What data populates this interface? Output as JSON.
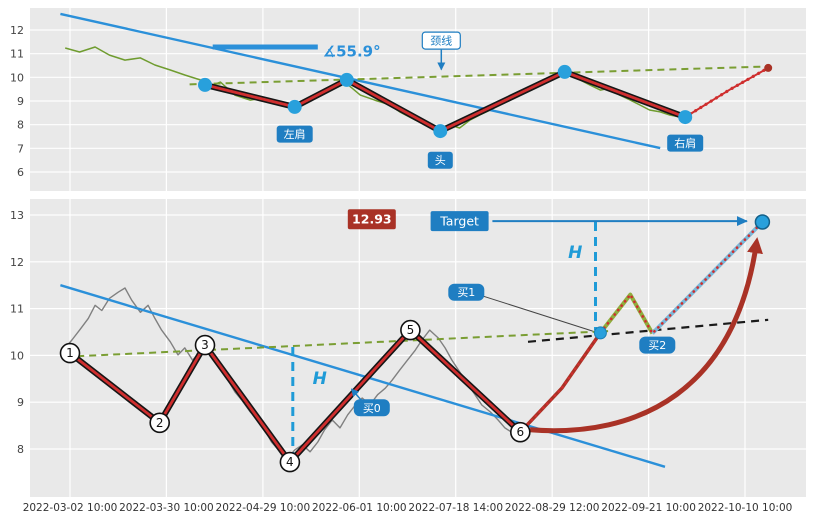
{
  "colors": {
    "panel_bg": "#e9e9e9",
    "grid": "#ffffff",
    "blue": "#2b90d9",
    "label_blue": "#1f7ec2",
    "measure_blue": "#1f9bd7",
    "price_green": "#6f9c2f",
    "green_dashed": "#7a9e33",
    "pattern_red": "#cf2e2e",
    "pattern_outline": "#161616",
    "maroon": "#a93226",
    "price_gray": "#808080",
    "dot_blue": "#28a0dc",
    "leg_green": "#8fae3e",
    "leg_blue": "#7bb8d9",
    "axis_text": "#444444"
  },
  "x_axis": {
    "x_scale": "index of x_axis.labels",
    "labels": [
      "2022-03-02 10:00",
      "2022-03-30 10:00",
      "2022-04-29 10:00",
      "2022-06-01 10:00",
      "2022-07-18 14:00",
      "2022-08-29 12:00",
      "2022-09-21 10:00",
      "2022-10-10 10:00"
    ]
  },
  "chart_data": [
    {
      "type": "line",
      "panel": "top",
      "title": "",
      "ylim": [
        5.2,
        12.9
      ],
      "y_ticks": [
        12,
        11,
        10,
        9,
        8,
        7,
        6
      ],
      "series": [
        {
          "name": "price",
          "points": [
            [
              -0.05,
              11.24
            ],
            [
              0.1,
              11.07
            ],
            [
              0.26,
              11.28
            ],
            [
              0.41,
              10.94
            ],
            [
              0.57,
              10.73
            ],
            [
              0.73,
              10.82
            ],
            [
              0.88,
              10.52
            ],
            [
              1.04,
              10.31
            ],
            [
              1.19,
              10.1
            ],
            [
              1.35,
              9.89
            ],
            [
              1.45,
              9.63
            ],
            [
              1.56,
              9.8
            ],
            [
              1.71,
              9.25
            ],
            [
              1.87,
              9.04
            ],
            [
              2.02,
              9.13
            ],
            [
              2.18,
              8.83
            ],
            [
              2.33,
              8.7
            ],
            [
              2.44,
              9.04
            ],
            [
              2.54,
              9.25
            ],
            [
              2.7,
              9.55
            ],
            [
              2.85,
              9.8
            ],
            [
              3.01,
              9.25
            ],
            [
              3.16,
              9.04
            ],
            [
              3.32,
              8.83
            ],
            [
              3.42,
              8.54
            ],
            [
              3.58,
              8.2
            ],
            [
              3.73,
              7.94
            ],
            [
              3.84,
              7.73
            ],
            [
              3.94,
              7.99
            ],
            [
              4.04,
              7.86
            ],
            [
              4.15,
              8.2
            ],
            [
              4.25,
              8.41
            ],
            [
              4.36,
              8.62
            ],
            [
              4.46,
              8.83
            ],
            [
              4.56,
              9.04
            ],
            [
              4.67,
              9.25
            ],
            [
              4.77,
              9.46
            ],
            [
              4.87,
              9.68
            ],
            [
              4.98,
              9.97
            ],
            [
              5.08,
              10.18
            ],
            [
              5.19,
              10.1
            ],
            [
              5.29,
              9.89
            ],
            [
              5.39,
              9.68
            ],
            [
              5.5,
              9.46
            ],
            [
              5.6,
              9.55
            ],
            [
              5.7,
              9.25
            ],
            [
              5.81,
              9.04
            ],
            [
              5.91,
              8.83
            ],
            [
              6.01,
              8.62
            ],
            [
              6.12,
              8.54
            ],
            [
              6.22,
              8.41
            ],
            [
              6.38,
              8.28
            ],
            [
              6.45,
              8.49
            ],
            [
              6.53,
              8.7
            ]
          ]
        },
        {
          "name": "trendline",
          "points": [
            [
              -0.1,
              12.68
            ],
            [
              6.12,
              7.01
            ]
          ]
        },
        {
          "name": "neckline",
          "points": [
            [
              1.24,
              9.7
            ],
            [
              7.26,
              10.46
            ]
          ]
        },
        {
          "name": "pattern",
          "points": [
            [
              1.4,
              9.68
            ],
            [
              2.33,
              8.75
            ],
            [
              2.87,
              9.89
            ],
            [
              3.84,
              7.73
            ],
            [
              5.13,
              10.23
            ],
            [
              6.38,
              8.32
            ]
          ]
        },
        {
          "name": "forecast_tail",
          "points": [
            [
              6.38,
              8.32
            ],
            [
              6.85,
              9.5
            ],
            [
              7.24,
              10.4
            ]
          ]
        }
      ],
      "annotations": {
        "angle": {
          "text": "∡55.9°",
          "bar": [
            [
              1.48,
              11.28
            ],
            [
              2.57,
              11.28
            ]
          ],
          "text_pos": [
            2.62,
            11.1
          ]
        },
        "neckline_label": {
          "text": "颈线",
          "pos": [
            3.85,
            11.55
          ],
          "arrow_to": [
            3.85,
            10.33
          ]
        },
        "markers": [
          {
            "text": "左肩",
            "pos": [
              2.33,
              7.6
            ]
          },
          {
            "text": "头",
            "pos": [
              3.84,
              6.5
            ]
          },
          {
            "text": "右肩",
            "pos": [
              6.38,
              7.22
            ]
          }
        ]
      }
    },
    {
      "type": "line",
      "panel": "bottom",
      "title": "",
      "ylim": [
        7.0,
        13.3
      ],
      "y_ticks": [
        13,
        12,
        11,
        10,
        9,
        8
      ],
      "pattern_labels": [
        "1",
        "2",
        "3",
        "4",
        "5",
        "6"
      ],
      "series": [
        {
          "name": "price",
          "points": [
            [
              -0.05,
              10.16
            ],
            [
              0.02,
              10.33
            ],
            [
              0.1,
              10.54
            ],
            [
              0.19,
              10.79
            ],
            [
              0.26,
              11.07
            ],
            [
              0.33,
              10.96
            ],
            [
              0.41,
              11.22
            ],
            [
              0.5,
              11.35
            ],
            [
              0.57,
              11.44
            ],
            [
              0.64,
              11.18
            ],
            [
              0.73,
              10.92
            ],
            [
              0.81,
              11.07
            ],
            [
              0.88,
              10.79
            ],
            [
              0.95,
              10.54
            ],
            [
              1.04,
              10.29
            ],
            [
              1.12,
              10.01
            ],
            [
              1.19,
              10.16
            ],
            [
              1.27,
              9.9
            ],
            [
              1.35,
              10.07
            ],
            [
              1.4,
              10.22
            ],
            [
              1.47,
              10.01
            ],
            [
              1.56,
              9.73
            ],
            [
              1.64,
              9.47
            ],
            [
              1.71,
              9.22
            ],
            [
              1.78,
              9.05
            ],
            [
              1.87,
              8.79
            ],
            [
              1.95,
              8.62
            ],
            [
              2.02,
              8.41
            ],
            [
              2.09,
              8.15
            ],
            [
              2.18,
              7.94
            ],
            [
              2.26,
              7.81
            ],
            [
              2.33,
              7.98
            ],
            [
              2.41,
              8.09
            ],
            [
              2.49,
              7.94
            ],
            [
              2.57,
              8.15
            ],
            [
              2.64,
              8.41
            ],
            [
              2.72,
              8.62
            ],
            [
              2.8,
              8.45
            ],
            [
              2.88,
              8.73
            ],
            [
              2.96,
              8.94
            ],
            [
              3.03,
              9.09
            ],
            [
              3.11,
              8.94
            ],
            [
              3.19,
              9.16
            ],
            [
              3.27,
              9.3
            ],
            [
              3.34,
              9.47
            ],
            [
              3.42,
              9.69
            ],
            [
              3.5,
              9.9
            ],
            [
              3.58,
              10.11
            ],
            [
              3.65,
              10.33
            ],
            [
              3.73,
              10.54
            ],
            [
              3.82,
              10.37
            ],
            [
              3.89,
              10.16
            ],
            [
              3.96,
              9.9
            ],
            [
              4.04,
              9.65
            ],
            [
              4.13,
              9.37
            ],
            [
              4.2,
              9.16
            ],
            [
              4.27,
              8.94
            ],
            [
              4.36,
              8.79
            ],
            [
              4.44,
              8.62
            ],
            [
              4.51,
              8.45
            ],
            [
              4.58,
              8.36
            ],
            [
              4.67,
              8.4
            ]
          ]
        },
        {
          "name": "trendline",
          "points": [
            [
              -0.1,
              11.5
            ],
            [
              6.17,
              7.62
            ]
          ]
        },
        {
          "name": "support_green",
          "points": [
            [
              -0.05,
              9.97
            ],
            [
              5.58,
              10.52
            ]
          ]
        },
        {
          "name": "neckline_ext",
          "points": [
            [
              4.75,
              10.29
            ],
            [
              7.24,
              10.76
            ]
          ]
        },
        {
          "name": "pattern",
          "points": [
            [
              0.0,
              10.05
            ],
            [
              0.93,
              8.56
            ],
            [
              1.4,
              10.22
            ],
            [
              2.28,
              7.72
            ],
            [
              3.53,
              10.54
            ],
            [
              4.67,
              8.36
            ]
          ]
        },
        {
          "name": "breakout",
          "points": [
            [
              4.67,
              8.36
            ],
            [
              5.1,
              9.3
            ],
            [
              5.5,
              10.48
            ]
          ]
        },
        {
          "name": "pullback",
          "points": [
            [
              5.5,
              10.48
            ],
            [
              5.81,
              11.3
            ],
            [
              6.04,
              10.47
            ]
          ]
        },
        {
          "name": "target_leg",
          "points": [
            [
              6.04,
              10.47
            ],
            [
              7.18,
              12.85
            ]
          ]
        }
      ],
      "annotations": {
        "target_price": "12.93",
        "target_label": "Target",
        "h_label": "H",
        "price_box_pos": [
          3.13,
          12.91
        ],
        "target_box_pos": [
          4.04,
          12.87
        ],
        "target_arrow": [
          [
            4.38,
            12.87
          ],
          [
            7.02,
            12.87
          ]
        ],
        "projection_dots": [
          [
            4.67,
            8.36
          ],
          [
            5.1,
            9.3
          ],
          [
            5.5,
            10.48
          ],
          [
            5.81,
            11.3
          ],
          [
            6.04,
            10.47
          ],
          [
            7.18,
            12.85
          ]
        ],
        "measure1": {
          "x": 2.31,
          "from": 10.18,
          "to": 7.76,
          "label_pos": [
            2.59,
            9.52
          ]
        },
        "measure2": {
          "x": 5.45,
          "from": 12.85,
          "to": 10.54,
          "label_pos": [
            5.24,
            12.21
          ]
        },
        "big_arrow": {
          "start": [
            4.77,
            8.41
          ],
          "c1": [
            5.91,
            8.23
          ],
          "c2": [
            6.9,
            9.26
          ],
          "end": [
            7.12,
            12.42
          ]
        },
        "buy_labels": [
          {
            "text": "买0",
            "pos": [
              3.13,
              8.88
            ],
            "arrow_to": [
              2.92,
              9.28
            ]
          },
          {
            "text": "买1",
            "pos": [
              4.11,
              11.35
            ],
            "line_to": [
              5.42,
              10.52
            ]
          },
          {
            "text": "买2",
            "pos": [
              6.09,
              10.22
            ]
          }
        ]
      }
    }
  ]
}
